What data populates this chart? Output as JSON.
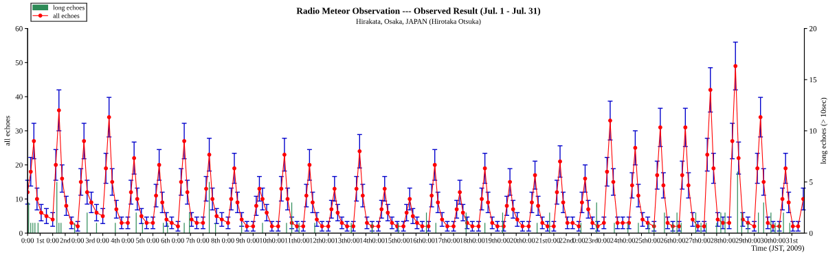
{
  "chart_data": {
    "type": "line",
    "title": "Radio Meteor Observation --- Observed Result (Jul. 1 - Jul. 31)",
    "subtitle": "Hirakata, Osaka, JAPAN (Hirotaka Otsuka)",
    "xlabel": "Time (JST, 2009)",
    "ylabel": "all echoes",
    "y2label": "long echoes (> 10sec)",
    "xlim": [
      "2009-07-01T00:00",
      "2009-08-01T00:00"
    ],
    "xticks": [
      {
        "value": "2009-07-01T00:00",
        "label": "0:00"
      },
      {
        "value": "2009-07-01T12:00",
        "label": "1st"
      },
      {
        "value": "2009-07-02T00:00",
        "label": "0:00"
      },
      {
        "value": "2009-07-02T12:00",
        "label": "2nd"
      },
      {
        "value": "2009-07-03T00:00",
        "label": "0:00"
      },
      {
        "value": "2009-07-03T12:00",
        "label": "3rd"
      },
      {
        "value": "2009-07-04T00:00",
        "label": "0:00"
      },
      {
        "value": "2009-07-04T12:00",
        "label": "4th"
      },
      {
        "value": "2009-07-05T00:00",
        "label": "0:00"
      },
      {
        "value": "2009-07-05T12:00",
        "label": "5th"
      },
      {
        "value": "2009-07-06T00:00",
        "label": "0:00"
      },
      {
        "value": "2009-07-06T12:00",
        "label": "6th"
      },
      {
        "value": "2009-07-07T00:00",
        "label": "0:00"
      },
      {
        "value": "2009-07-07T12:00",
        "label": "7th"
      },
      {
        "value": "2009-07-08T00:00",
        "label": "0:00"
      },
      {
        "value": "2009-07-08T12:00",
        "label": "8th"
      },
      {
        "value": "2009-07-09T00:00",
        "label": "0:00"
      },
      {
        "value": "2009-07-09T12:00",
        "label": "9th"
      },
      {
        "value": "2009-07-10T00:00",
        "label": "0:00"
      },
      {
        "value": "2009-07-10T12:00",
        "label": "10th"
      },
      {
        "value": "2009-07-11T00:00",
        "label": "0:00"
      },
      {
        "value": "2009-07-11T12:00",
        "label": "11th"
      },
      {
        "value": "2009-07-12T00:00",
        "label": "0:00"
      },
      {
        "value": "2009-07-12T12:00",
        "label": "12th"
      },
      {
        "value": "2009-07-13T00:00",
        "label": "0:00"
      },
      {
        "value": "2009-07-13T12:00",
        "label": "13th"
      },
      {
        "value": "2009-07-14T00:00",
        "label": "0:00"
      },
      {
        "value": "2009-07-14T12:00",
        "label": "14th"
      },
      {
        "value": "2009-07-15T00:00",
        "label": "0:00"
      },
      {
        "value": "2009-07-15T12:00",
        "label": "15th"
      },
      {
        "value": "2009-07-16T00:00",
        "label": "0:00"
      },
      {
        "value": "2009-07-16T12:00",
        "label": "16th"
      },
      {
        "value": "2009-07-17T00:00",
        "label": "0:00"
      },
      {
        "value": "2009-07-17T12:00",
        "label": "17th"
      },
      {
        "value": "2009-07-18T00:00",
        "label": "0:00"
      },
      {
        "value": "2009-07-18T12:00",
        "label": "18th"
      },
      {
        "value": "2009-07-19T00:00",
        "label": "0:00"
      },
      {
        "value": "2009-07-19T12:00",
        "label": "19th"
      },
      {
        "value": "2009-07-20T00:00",
        "label": "0:00"
      },
      {
        "value": "2009-07-20T12:00",
        "label": "20th"
      },
      {
        "value": "2009-07-21T00:00",
        "label": "0:00"
      },
      {
        "value": "2009-07-21T12:00",
        "label": "21st"
      },
      {
        "value": "2009-07-22T00:00",
        "label": "0:00"
      },
      {
        "value": "2009-07-22T12:00",
        "label": "22nd"
      },
      {
        "value": "2009-07-23T00:00",
        "label": "0:00"
      },
      {
        "value": "2009-07-23T12:00",
        "label": "23rd"
      },
      {
        "value": "2009-07-24T00:00",
        "label": "0:00"
      },
      {
        "value": "2009-07-24T12:00",
        "label": "24th"
      },
      {
        "value": "2009-07-25T00:00",
        "label": "0:00"
      },
      {
        "value": "2009-07-25T12:00",
        "label": "25th"
      },
      {
        "value": "2009-07-26T00:00",
        "label": "0:00"
      },
      {
        "value": "2009-07-26T12:00",
        "label": "26th"
      },
      {
        "value": "2009-07-27T00:00",
        "label": "0:00"
      },
      {
        "value": "2009-07-27T12:00",
        "label": "27th"
      },
      {
        "value": "2009-07-28T00:00",
        "label": "0:00"
      },
      {
        "value": "2009-07-28T12:00",
        "label": "28th"
      },
      {
        "value": "2009-07-29T00:00",
        "label": "0:00"
      },
      {
        "value": "2009-07-29T12:00",
        "label": "29th"
      },
      {
        "value": "2009-07-30T00:00",
        "label": "0:00"
      },
      {
        "value": "2009-07-30T12:00",
        "label": "30th"
      },
      {
        "value": "2009-07-31T00:00",
        "label": "0:00"
      },
      {
        "value": "2009-07-31T12:00",
        "label": "31st"
      }
    ],
    "ylim": [
      0,
      60
    ],
    "yticks": [
      0,
      10,
      20,
      30,
      40,
      50,
      60
    ],
    "y2lim": [
      0,
      20
    ],
    "y2ticks": [
      0,
      5,
      10,
      15,
      20
    ],
    "grid": false,
    "legend": "top left",
    "marker": "circle",
    "line_style": "solid",
    "series": [
      {
        "name": "long echoes",
        "type": "bar",
        "axis": "y2",
        "color": "#2e8b57",
        "x": [
          "2009-07-01T01:00",
          "2009-07-01T03:00",
          "2009-07-01T05:00",
          "2009-07-01T07:00",
          "2009-07-01T10:00",
          "2009-07-02T04:00",
          "2009-07-02T06:00",
          "2009-07-02T08:00",
          "2009-07-02T21:00",
          "2009-07-03T09:00",
          "2009-07-03T18:00",
          "2009-07-04T12:00",
          "2009-07-05T08:00",
          "2009-07-05T14:00",
          "2009-07-06T10:00",
          "2009-07-06T14:00",
          "2009-07-07T06:00",
          "2009-07-07T11:00",
          "2009-07-08T06:00",
          "2009-07-08T12:00",
          "2009-07-09T13:00",
          "2009-07-10T09:00",
          "2009-07-11T08:00",
          "2009-07-11T13:00",
          "2009-07-11T20:00",
          "2009-07-12T11:00",
          "2009-07-13T22:00",
          "2009-07-14T18:00",
          "2009-07-15T19:00",
          "2009-07-16T22:00",
          "2009-07-17T07:00",
          "2009-07-18T12:00",
          "2009-07-19T06:00",
          "2009-07-19T23:00",
          "2009-07-21T08:00",
          "2009-07-21T20:00",
          "2009-07-23T02:00",
          "2009-07-23T17:00",
          "2009-07-24T10:00",
          "2009-07-24T23:00",
          "2009-07-25T09:00",
          "2009-07-25T19:00",
          "2009-07-26T00:00",
          "2009-07-26T10:00",
          "2009-07-26T18:00",
          "2009-07-26T22:00",
          "2009-07-27T02:00",
          "2009-07-27T16:00",
          "2009-07-27T21:00",
          "2009-07-28T02:00",
          "2009-07-28T12:00",
          "2009-07-28T16:00",
          "2009-07-28T20:00",
          "2009-07-29T08:00",
          "2009-07-29T12:00",
          "2009-07-29T18:00",
          "2009-07-30T04:00",
          "2009-07-30T09:00",
          "2009-07-30T16:00",
          "2009-07-30T20:00",
          "2009-07-31T00:00",
          "2009-07-31T04:00",
          "2009-07-31T10:00"
        ],
        "values": [
          3,
          1,
          1,
          1,
          1,
          5,
          1,
          1,
          1,
          2,
          1,
          1,
          2,
          1,
          1,
          1,
          1,
          2,
          5,
          1,
          1,
          1,
          1,
          3,
          1,
          1,
          1,
          1,
          1,
          2,
          1,
          2,
          1,
          2,
          1,
          2,
          1,
          3,
          1,
          1,
          1,
          1,
          1,
          2,
          1,
          2,
          1,
          2,
          1,
          1,
          1,
          2,
          2,
          6,
          2,
          1,
          2,
          3,
          2,
          1,
          1,
          2,
          1
        ]
      },
      {
        "name": "all echoes",
        "axis": "y",
        "color": "#ff0000",
        "x": [
          "2009-07-01T00:00",
          "2009-07-01T03:00",
          "2009-07-01T06:00",
          "2009-07-01T09:00",
          "2009-07-01T13:00",
          "2009-07-01T18:00",
          "2009-07-02T00:00",
          "2009-07-02T03:00",
          "2009-07-02T06:00",
          "2009-07-02T09:00",
          "2009-07-02T13:00",
          "2009-07-02T18:00",
          "2009-07-03T00:00",
          "2009-07-03T03:00",
          "2009-07-03T06:00",
          "2009-07-03T09:00",
          "2009-07-03T13:00",
          "2009-07-03T18:00",
          "2009-07-04T00:00",
          "2009-07-04T03:00",
          "2009-07-04T06:00",
          "2009-07-04T09:00",
          "2009-07-04T13:00",
          "2009-07-04T18:00",
          "2009-07-05T00:00",
          "2009-07-05T03:00",
          "2009-07-05T06:00",
          "2009-07-05T09:00",
          "2009-07-05T13:00",
          "2009-07-05T18:00",
          "2009-07-06T00:00",
          "2009-07-06T03:00",
          "2009-07-06T06:00",
          "2009-07-06T09:00",
          "2009-07-06T13:00",
          "2009-07-06T18:00",
          "2009-07-07T00:00",
          "2009-07-07T03:00",
          "2009-07-07T06:00",
          "2009-07-07T09:00",
          "2009-07-07T13:00",
          "2009-07-07T18:00",
          "2009-07-08T00:00",
          "2009-07-08T03:00",
          "2009-07-08T06:00",
          "2009-07-08T09:00",
          "2009-07-08T13:00",
          "2009-07-08T18:00",
          "2009-07-09T00:00",
          "2009-07-09T03:00",
          "2009-07-09T06:00",
          "2009-07-09T09:00",
          "2009-07-09T13:00",
          "2009-07-09T18:00",
          "2009-07-10T00:00",
          "2009-07-10T03:00",
          "2009-07-10T06:00",
          "2009-07-10T09:00",
          "2009-07-10T13:00",
          "2009-07-10T18:00",
          "2009-07-11T00:00",
          "2009-07-11T03:00",
          "2009-07-11T06:00",
          "2009-07-11T09:00",
          "2009-07-11T13:00",
          "2009-07-11T18:00",
          "2009-07-12T00:00",
          "2009-07-12T03:00",
          "2009-07-12T06:00",
          "2009-07-12T09:00",
          "2009-07-12T13:00",
          "2009-07-12T18:00",
          "2009-07-13T00:00",
          "2009-07-13T03:00",
          "2009-07-13T06:00",
          "2009-07-13T09:00",
          "2009-07-13T13:00",
          "2009-07-13T18:00",
          "2009-07-14T00:00",
          "2009-07-14T03:00",
          "2009-07-14T06:00",
          "2009-07-14T09:00",
          "2009-07-14T13:00",
          "2009-07-14T18:00",
          "2009-07-15T00:00",
          "2009-07-15T03:00",
          "2009-07-15T06:00",
          "2009-07-15T09:00",
          "2009-07-15T13:00",
          "2009-07-15T18:00",
          "2009-07-16T00:00",
          "2009-07-16T03:00",
          "2009-07-16T06:00",
          "2009-07-16T09:00",
          "2009-07-16T13:00",
          "2009-07-16T18:00",
          "2009-07-17T00:00",
          "2009-07-17T03:00",
          "2009-07-17T06:00",
          "2009-07-17T09:00",
          "2009-07-17T13:00",
          "2009-07-17T18:00",
          "2009-07-18T00:00",
          "2009-07-18T03:00",
          "2009-07-18T06:00",
          "2009-07-18T09:00",
          "2009-07-18T13:00",
          "2009-07-18T18:00",
          "2009-07-19T00:00",
          "2009-07-19T03:00",
          "2009-07-19T06:00",
          "2009-07-19T09:00",
          "2009-07-19T13:00",
          "2009-07-19T18:00",
          "2009-07-20T00:00",
          "2009-07-20T03:00",
          "2009-07-20T06:00",
          "2009-07-20T09:00",
          "2009-07-20T13:00",
          "2009-07-20T18:00",
          "2009-07-21T00:00",
          "2009-07-21T03:00",
          "2009-07-21T06:00",
          "2009-07-21T09:00",
          "2009-07-21T13:00",
          "2009-07-21T18:00",
          "2009-07-22T00:00",
          "2009-07-22T03:00",
          "2009-07-22T06:00",
          "2009-07-22T09:00",
          "2009-07-22T13:00",
          "2009-07-22T18:00",
          "2009-07-23T00:00",
          "2009-07-23T03:00",
          "2009-07-23T06:00",
          "2009-07-23T09:00",
          "2009-07-23T13:00",
          "2009-07-23T18:00",
          "2009-07-24T00:00",
          "2009-07-24T03:00",
          "2009-07-24T06:00",
          "2009-07-24T09:00",
          "2009-07-24T13:00",
          "2009-07-24T18:00",
          "2009-07-25T00:00",
          "2009-07-25T03:00",
          "2009-07-25T06:00",
          "2009-07-25T09:00",
          "2009-07-25T13:00",
          "2009-07-25T18:00",
          "2009-07-26T00:00",
          "2009-07-26T03:00",
          "2009-07-26T06:00",
          "2009-07-26T09:00",
          "2009-07-26T13:00",
          "2009-07-26T18:00",
          "2009-07-27T00:00",
          "2009-07-27T03:00",
          "2009-07-27T06:00",
          "2009-07-27T09:00",
          "2009-07-27T13:00",
          "2009-07-27T18:00",
          "2009-07-28T00:00",
          "2009-07-28T03:00",
          "2009-07-28T06:00",
          "2009-07-28T09:00",
          "2009-07-28T13:00",
          "2009-07-28T18:00",
          "2009-07-29T00:00",
          "2009-07-29T03:00",
          "2009-07-29T06:00",
          "2009-07-29T09:00",
          "2009-07-29T13:00",
          "2009-07-29T18:00",
          "2009-07-30T00:00",
          "2009-07-30T03:00",
          "2009-07-30T06:00",
          "2009-07-30T09:00",
          "2009-07-30T13:00",
          "2009-07-30T18:00",
          "2009-07-31T00:00",
          "2009-07-31T03:00",
          "2009-07-31T06:00",
          "2009-07-31T09:00",
          "2009-07-31T13:00",
          "2009-07-31T18:00",
          "2009-07-31T23:00"
        ],
        "values": [
          12,
          18,
          27,
          10,
          6,
          5,
          4,
          20,
          36,
          16,
          8,
          3,
          2,
          15,
          27,
          12,
          9,
          6,
          5,
          19,
          34,
          15,
          7,
          3,
          3,
          12,
          22,
          10,
          5,
          3,
          3,
          11,
          20,
          9,
          4,
          3,
          2,
          15,
          27,
          12,
          4,
          3,
          3,
          13,
          23,
          10,
          5,
          4,
          3,
          10,
          19,
          9,
          4,
          2,
          2,
          8,
          13,
          10,
          6,
          2,
          2,
          13,
          23,
          10,
          3,
          2,
          2,
          11,
          20,
          9,
          4,
          2,
          2,
          7,
          13,
          6,
          3,
          2,
          2,
          13,
          24,
          11,
          3,
          2,
          2,
          7,
          13,
          6,
          3,
          2,
          2,
          6,
          10,
          5,
          3,
          2,
          2,
          11,
          20,
          9,
          4,
          2,
          2,
          7,
          12,
          6,
          3,
          2,
          2,
          10,
          19,
          9,
          3,
          2,
          2,
          8,
          15,
          7,
          4,
          2,
          2,
          9,
          17,
          8,
          3,
          2,
          2,
          12,
          21,
          9,
          3,
          3,
          2,
          9,
          16,
          7,
          3,
          2,
          3,
          18,
          33,
          15,
          3,
          3,
          3,
          14,
          25,
          11,
          4,
          3,
          2,
          17,
          31,
          14,
          3,
          2,
          2,
          17,
          31,
          14,
          4,
          2,
          2,
          23,
          42,
          19,
          4,
          3,
          3,
          27,
          49,
          22,
          4,
          3,
          2,
          19,
          34,
          15,
          3,
          2,
          2,
          10,
          19,
          9,
          2,
          2,
          10
        ],
        "errors": [
          3.5,
          4.2,
          5.2,
          3.2,
          2.4,
          2.2,
          2,
          4.5,
          6,
          4,
          2.8,
          1.7,
          1.4,
          3.9,
          5.2,
          3.5,
          3,
          2.4,
          2.2,
          4.4,
          5.8,
          3.9,
          2.6,
          1.7,
          1.7,
          3.5,
          4.7,
          3.2,
          2.2,
          1.7,
          1.7,
          3.3,
          4.5,
          3,
          2,
          1.7,
          1.4,
          3.9,
          5.2,
          3.5,
          2,
          1.7,
          1.7,
          3.6,
          4.8,
          3.2,
          2.2,
          2,
          1.7,
          3.2,
          4.4,
          3,
          2,
          1.4,
          1.4,
          2.8,
          3.6,
          3.2,
          2.4,
          1.4,
          1.4,
          3.6,
          4.8,
          3.2,
          1.7,
          1.4,
          1.4,
          3.3,
          4.5,
          3,
          2,
          1.4,
          1.4,
          2.6,
          3.6,
          2.4,
          1.7,
          1.4,
          1.4,
          3.6,
          4.9,
          3.3,
          1.7,
          1.4,
          1.4,
          2.6,
          3.6,
          2.4,
          1.7,
          1.4,
          1.4,
          2.4,
          3.2,
          2.2,
          1.7,
          1.4,
          1.4,
          3.3,
          4.5,
          3,
          2,
          1.4,
          1.4,
          2.6,
          3.5,
          2.4,
          1.7,
          1.4,
          1.4,
          3.2,
          4.4,
          3,
          1.7,
          1.4,
          1.4,
          2.8,
          3.9,
          2.6,
          2,
          1.4,
          1.4,
          3,
          4.1,
          2.8,
          1.7,
          1.4,
          1.4,
          3.5,
          4.6,
          3,
          1.7,
          1.7,
          1.4,
          3,
          4,
          2.6,
          1.7,
          1.4,
          1.7,
          4.2,
          5.7,
          3.9,
          1.7,
          1.7,
          1.7,
          3.7,
          5,
          3.3,
          2,
          1.7,
          1.4,
          4.1,
          5.6,
          3.7,
          1.7,
          1.4,
          1.4,
          4.1,
          5.6,
          3.7,
          2,
          1.4,
          1.4,
          4.8,
          6.5,
          4.4,
          2,
          1.7,
          1.7,
          5.2,
          7,
          4.7,
          2,
          1.7,
          1.4,
          4.4,
          5.8,
          3.9,
          1.7,
          1.4,
          1.4,
          3.2,
          4.4,
          3,
          1.4,
          1.4,
          3.2
        ]
      }
    ]
  }
}
